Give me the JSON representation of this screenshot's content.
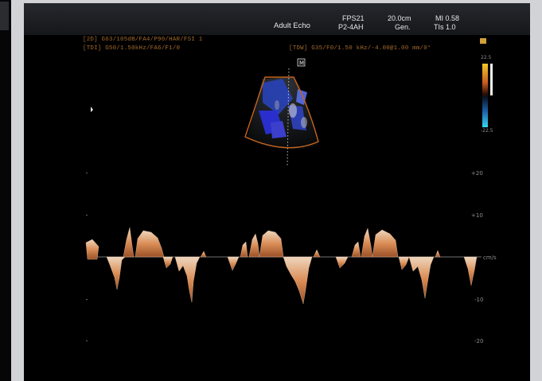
{
  "header": {
    "preset": "Adult Echo",
    "fps": "FPS21",
    "probe": "P2-4AH",
    "depth": "20.0cm",
    "mode": "Gen.",
    "mi": "MI 0.58",
    "tis": "TIs 1.0"
  },
  "params": {
    "line_2d": "[2D] G63/105dB/FA4/P90/HAR/FSI 1",
    "line_tdi": "[TDI] G50/1.50kHz/FA6/F1/0",
    "line_tdw": "[TDW] G35/F0/1.50 kHz/-4.00@1.00 mm/0°",
    "marker": "M"
  },
  "color_bar": {
    "top_label": "22.5",
    "bottom_label": "-22.5",
    "top_color": "#f5c928",
    "bottom_color": "#35b7ee"
  },
  "doppler_scale": {
    "labels": [
      "+20",
      "+10",
      "cm/s",
      "-10",
      "-20"
    ]
  }
}
